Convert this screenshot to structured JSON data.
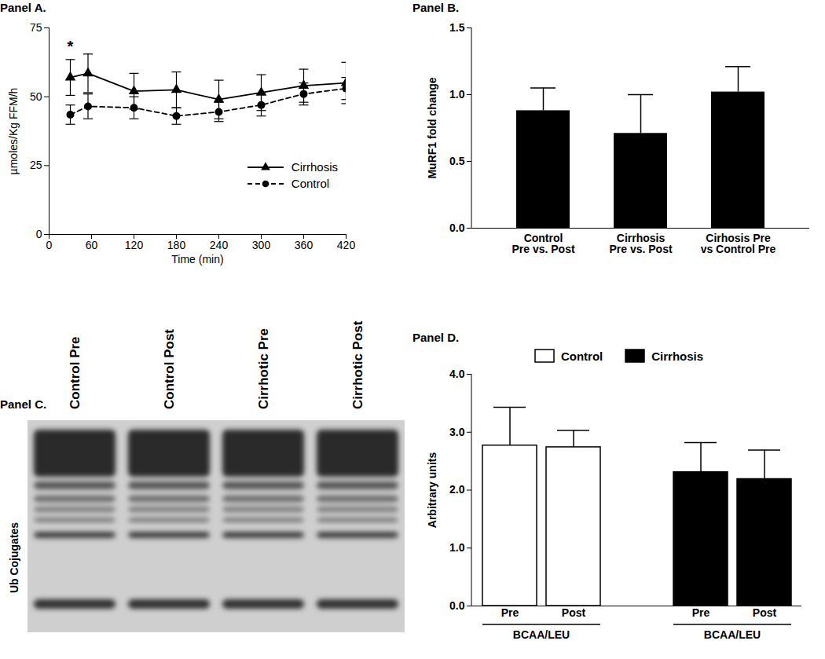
{
  "chart_data": [
    {
      "type": "line",
      "title": "Panel A.",
      "x_label": "Time (min)",
      "y_label": "µmoles/Kg FFM/h",
      "x": [
        30,
        55,
        120,
        180,
        240,
        300,
        360,
        420
      ],
      "series": [
        {
          "name": "Cirrhosis",
          "color": "#000000",
          "marker": "triangle",
          "line_style": "solid",
          "values": [
            57,
            58.5,
            52,
            52.5,
            49,
            51.5,
            54,
            55
          ],
          "errors": [
            6.5,
            7,
            6.5,
            6.5,
            7,
            6.5,
            6,
            7.5
          ]
        },
        {
          "name": "Control",
          "color": "#000000",
          "marker": "circle",
          "line_style": "dashed",
          "values": [
            43.5,
            46.5,
            46,
            43,
            44.5,
            47,
            51,
            53
          ],
          "errors": [
            3.5,
            4.5,
            4,
            3,
            3.5,
            4,
            4,
            4
          ]
        }
      ],
      "xlim": [
        0,
        420
      ],
      "xticks": [
        0,
        60,
        120,
        180,
        240,
        300,
        360,
        420
      ],
      "ylim": [
        0,
        75
      ],
      "yticks": [
        0,
        25,
        50,
        75
      ],
      "legend": "right",
      "annotations": [
        {
          "text": "*",
          "x": 30,
          "y": 68
        }
      ]
    },
    {
      "type": "bar",
      "title": "Panel B.",
      "y_label": "MuRF1 fold change",
      "categories": [
        "Control\nPre vs. Post",
        "Cirrhosis\nPre vs. Post",
        "Cirhosis Pre\nvs Control Pre"
      ],
      "values": [
        0.88,
        0.71,
        1.02
      ],
      "errors": [
        0.17,
        0.29,
        0.19
      ],
      "color": "#000000",
      "ylim": [
        0,
        1.5
      ],
      "yticks": [
        {
          "value": 0,
          "label": "0.0"
        },
        {
          "value": 0.5,
          "label": "0.5"
        },
        {
          "value": 1,
          "label": "1.0"
        },
        {
          "value": 1.5,
          "label": "1.5"
        }
      ]
    },
    {
      "type": "blot",
      "title": "Panel C.",
      "y_label": "Ub Cojugates",
      "lanes": [
        "Control Pre",
        "Control Post",
        "Cirrhotic Pre",
        "Cirrhotic Post"
      ]
    },
    {
      "type": "bar",
      "title": "Panel D.",
      "x_label": "BCAA/LEU",
      "y_label": "Arbitrary units",
      "categories": [
        "Pre",
        "Post"
      ],
      "series": [
        {
          "name": "Control",
          "color": "#ffffff",
          "values": [
            2.77,
            2.74
          ],
          "errors": [
            0.66,
            0.29
          ]
        },
        {
          "name": "Cirrhosis",
          "color": "#000000",
          "values": [
            2.31,
            2.19
          ],
          "errors": [
            0.51,
            0.5
          ]
        }
      ],
      "ylim": [
        0,
        4
      ],
      "yticks": [
        {
          "value": 0,
          "label": "0.0"
        },
        {
          "value": 1,
          "label": "1.0"
        },
        {
          "value": 2,
          "label": "2.0"
        },
        {
          "value": 3,
          "label": "3.0"
        },
        {
          "value": 4,
          "label": "4.0"
        }
      ],
      "legend": "top"
    }
  ]
}
